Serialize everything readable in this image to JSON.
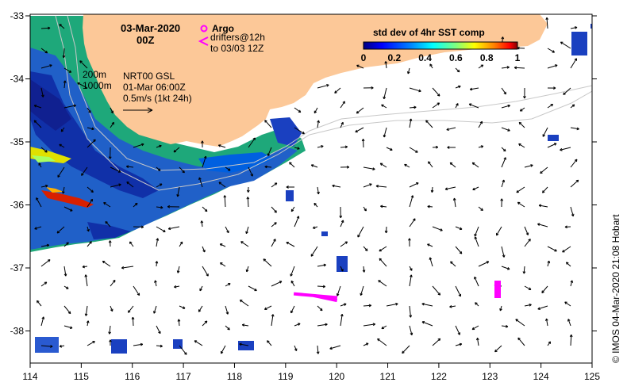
{
  "map": {
    "date_title": "03-Mar-2020",
    "time_title": "00Z",
    "contours": [
      "200m",
      "1000m"
    ],
    "current_source": "NRT00 GSL",
    "current_time": "01-Mar 06:00Z",
    "current_scale": "0.5m/s (1kt 24h)",
    "argo_label": "Argo",
    "drifters_label": "drifters@12h",
    "drifters_until": "to 03/03 12Z",
    "credit": "©  IMOS 04-Mar-2020 21:08 Hobart",
    "colorbar": {
      "title": "std dev of 4hr SST comp",
      "ticks": [
        "0",
        "0.2",
        "0.4",
        "0.6",
        "0.8",
        "1"
      ],
      "colors": [
        "#00007f",
        "#0000ff",
        "#007fff",
        "#00ffff",
        "#7fff7f",
        "#ffff00",
        "#ff7f00",
        "#ff0000",
        "#7f0000"
      ]
    },
    "x_ticks": [
      "114",
      "115",
      "116",
      "117",
      "118",
      "119",
      "120",
      "121",
      "122",
      "123",
      "124",
      "125"
    ],
    "y_ticks": [
      "-33",
      "-34",
      "-35",
      "-36",
      "-37",
      "-38"
    ],
    "land_color": "#fcc898",
    "argo_color": "#ff00ff"
  }
}
